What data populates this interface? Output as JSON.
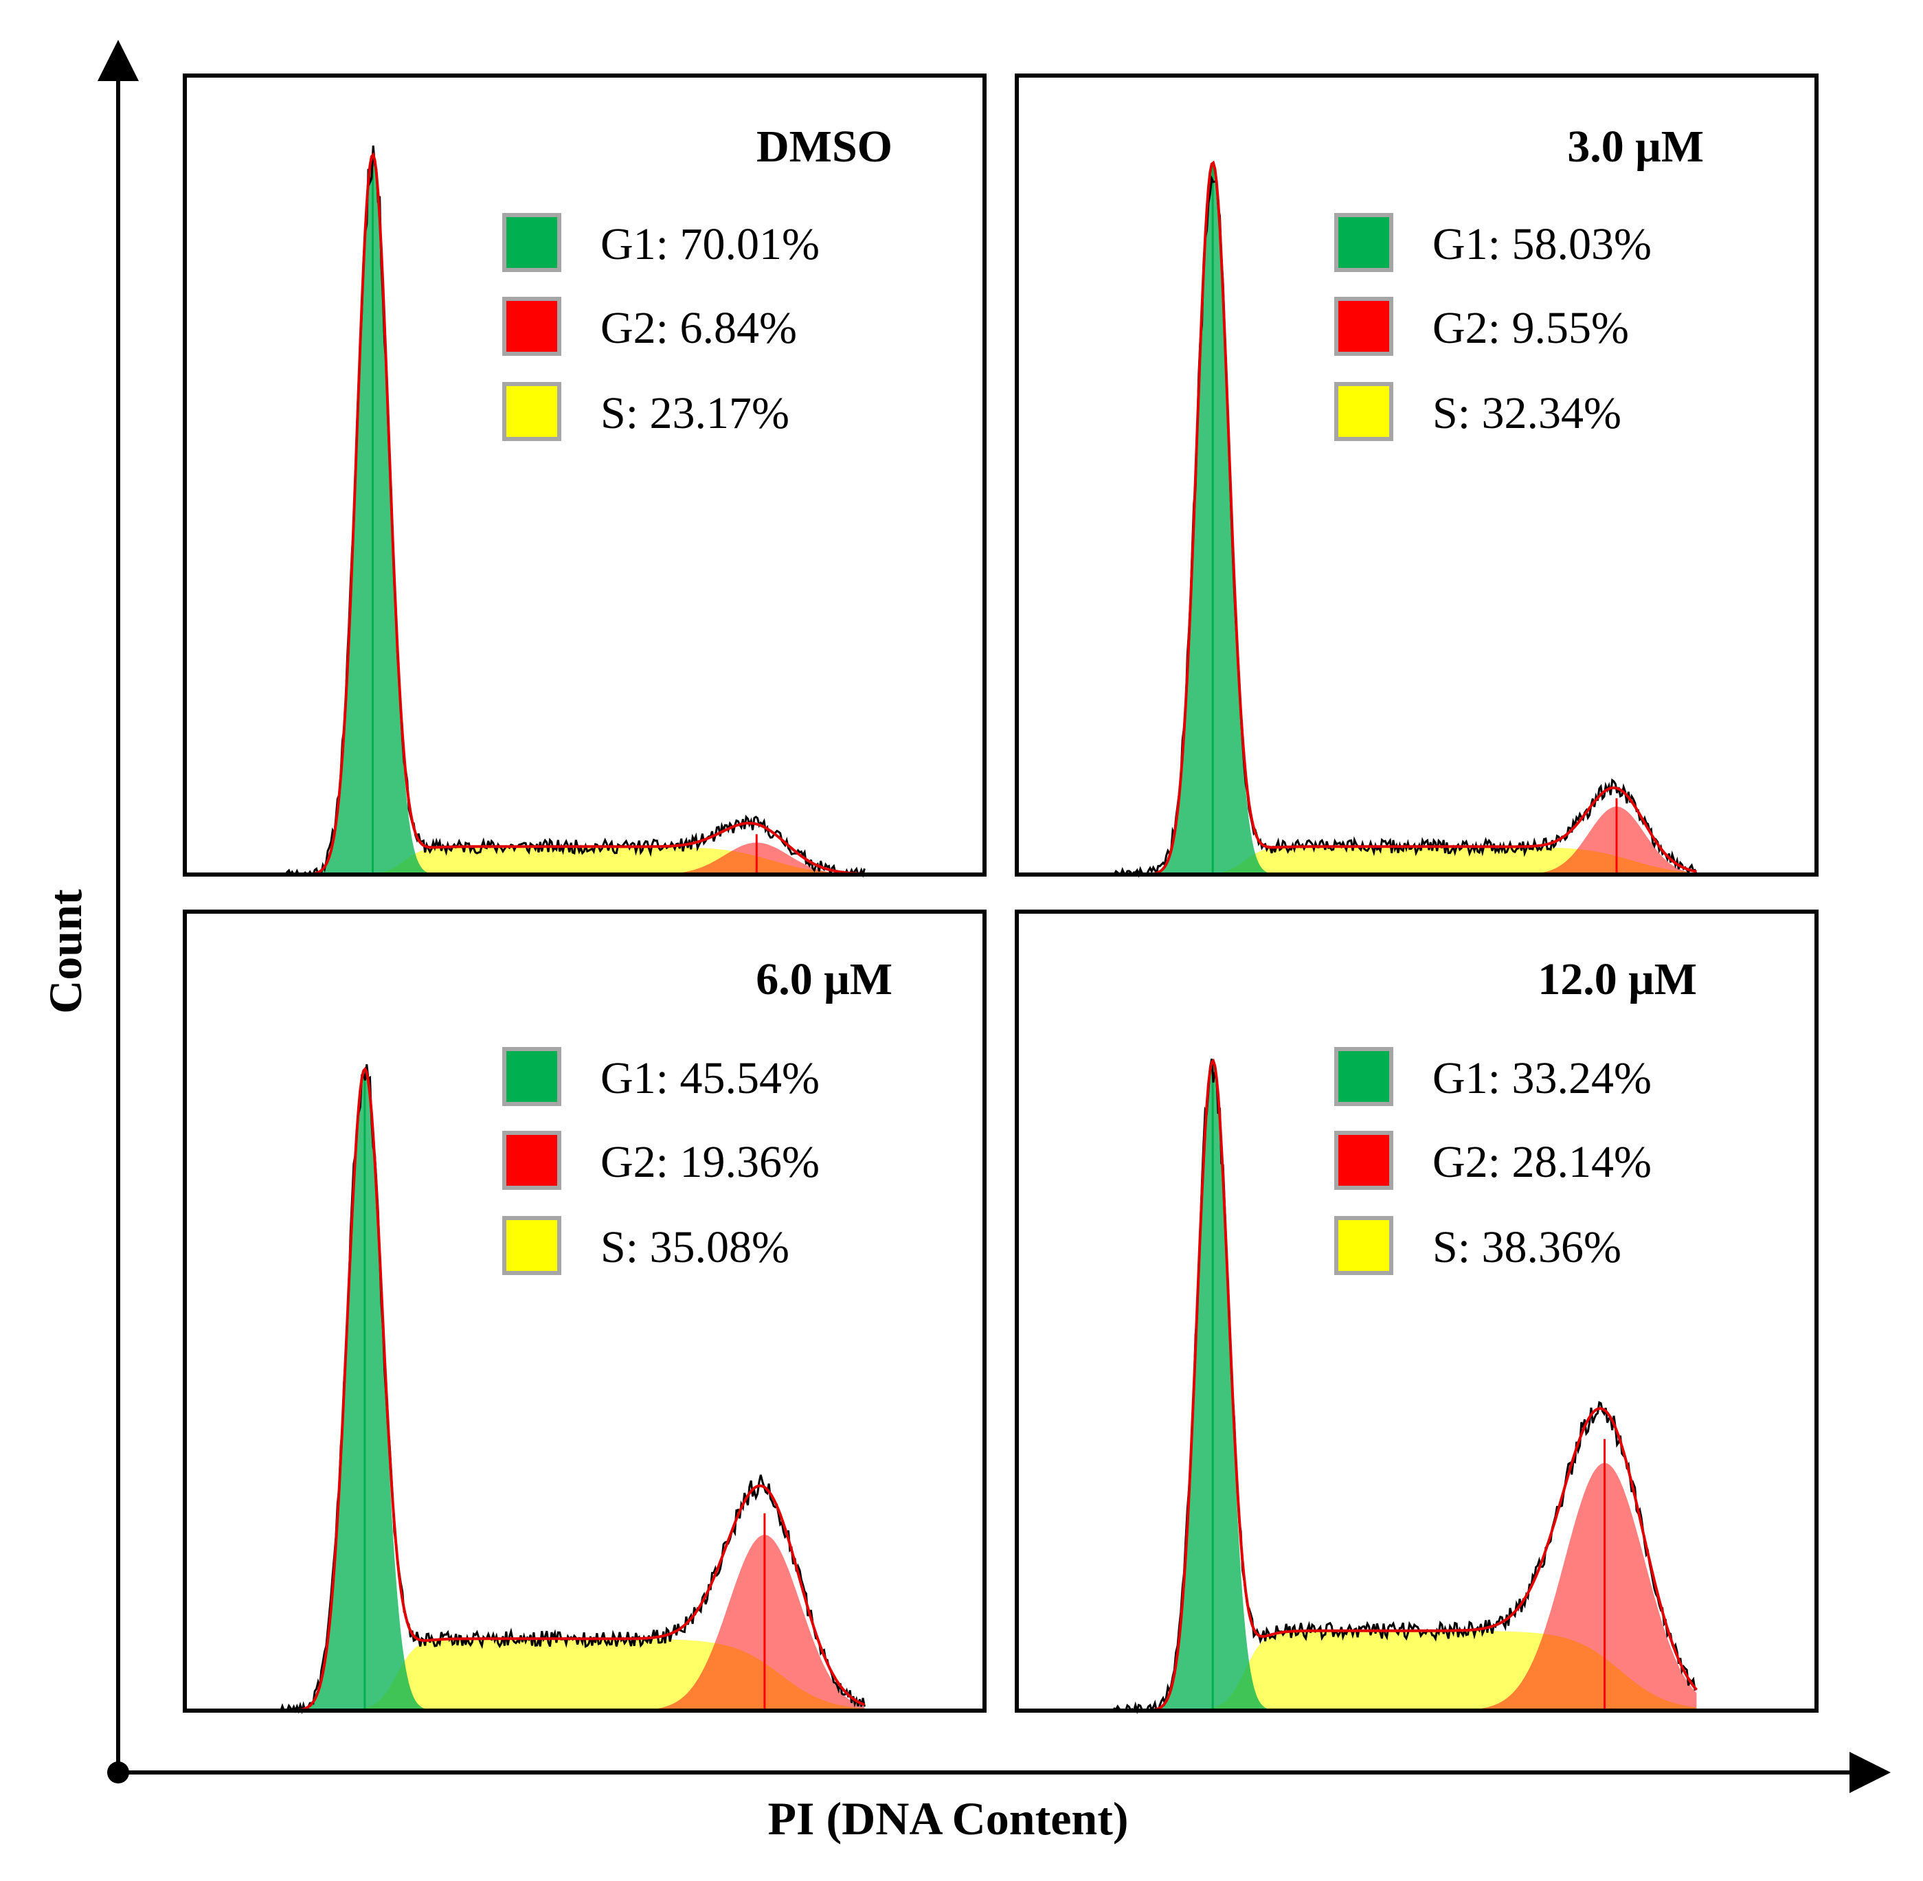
{
  "colors": {
    "g1": "#00B050",
    "g2": "#FF0000",
    "s": "#FFFF00",
    "swatch_border": "#A6A6A6",
    "fit_line": "#E00000",
    "raw_line": "#000000"
  },
  "chart_data": {
    "type": "area",
    "xlabel": "PI (DNA Content)",
    "ylabel": "Count",
    "panels": [
      {
        "title": "DMSO",
        "g1_peak_x": 0.235,
        "g1_peak_h": 0.9,
        "g1_sigma": 0.02,
        "g2_peak_x": 0.715,
        "g2_peak_h": 0.04,
        "g2_sigma": 0.04,
        "s_level": 0.035,
        "legend": [
          {
            "phase": "G1",
            "label": "G1: 70.01%",
            "value": 70.01
          },
          {
            "phase": "G2",
            "label": "G2: 6.84%",
            "value": 6.84
          },
          {
            "phase": "S",
            "label": "S: 23.17%",
            "value": 23.17
          }
        ]
      },
      {
        "title": "3.0 μM",
        "g1_peak_x": 0.245,
        "g1_peak_h": 0.89,
        "g1_sigma": 0.02,
        "g2_peak_x": 0.75,
        "g2_peak_h": 0.085,
        "g2_sigma": 0.035,
        "s_level": 0.035,
        "legend": [
          {
            "phase": "G1",
            "label": "G1: 58.03%",
            "value": 58.03
          },
          {
            "phase": "G2",
            "label": "G2: 9.55%",
            "value": 9.55
          },
          {
            "phase": "S",
            "label": "S: 32.34%",
            "value": 32.34
          }
        ]
      },
      {
        "title": "6.0 μM",
        "g1_peak_x": 0.225,
        "g1_peak_h": 0.8,
        "g1_sigma": 0.022,
        "g2_peak_x": 0.725,
        "g2_peak_h": 0.22,
        "g2_sigma": 0.045,
        "s_level": 0.09,
        "legend": [
          {
            "phase": "G1",
            "label": "G1: 45.54%",
            "value": 45.54
          },
          {
            "phase": "G2",
            "label": "G2: 19.36%",
            "value": 19.36
          },
          {
            "phase": "S",
            "label": "S: 35.08%",
            "value": 35.08
          }
        ]
      },
      {
        "title": "12.0 μM",
        "g1_peak_x": 0.245,
        "g1_peak_h": 0.81,
        "g1_sigma": 0.02,
        "g2_peak_x": 0.735,
        "g2_peak_h": 0.31,
        "g2_sigma": 0.05,
        "s_level": 0.1,
        "legend": [
          {
            "phase": "G1",
            "label": "G1: 33.24%",
            "value": 33.24
          },
          {
            "phase": "G2",
            "label": "G2: 28.14%",
            "value": 28.14
          },
          {
            "phase": "S",
            "label": "S: 38.36%",
            "value": 38.36
          }
        ]
      }
    ]
  }
}
